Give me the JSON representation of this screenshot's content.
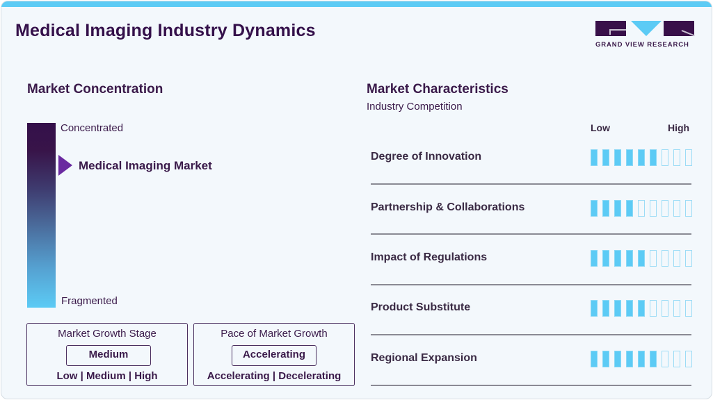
{
  "header": {
    "title": "Medical Imaging Industry Dynamics",
    "logo_text": "GRAND VIEW RESEARCH"
  },
  "colors": {
    "accent": "#5ccbf5",
    "brand_dark": "#34104a",
    "pointer": "#6a2aa0"
  },
  "concentration": {
    "heading": "Market Concentration",
    "top_label": "Concentrated",
    "bottom_label": "Fragmented",
    "marker_label": "Medical Imaging Market"
  },
  "growth_stage": {
    "title": "Market Growth Stage",
    "value": "Medium",
    "options": "Low | Medium | High"
  },
  "growth_pace": {
    "title": "Pace of Market Growth",
    "value": "Accelerating",
    "options": "Accelerating | Decelerating"
  },
  "characteristics": {
    "heading": "Market Characteristics",
    "subheading": "Industry Competition",
    "scale_low": "Low",
    "scale_high": "High",
    "max_level": 9,
    "rows": [
      {
        "label": "Degree of Innovation",
        "level": 6
      },
      {
        "label": "Partnership & Collaborations",
        "level": 4
      },
      {
        "label": "Impact of Regulations",
        "level": 5
      },
      {
        "label": "Product Substitute",
        "level": 5
      },
      {
        "label": "Regional Expansion",
        "level": 6
      }
    ]
  }
}
